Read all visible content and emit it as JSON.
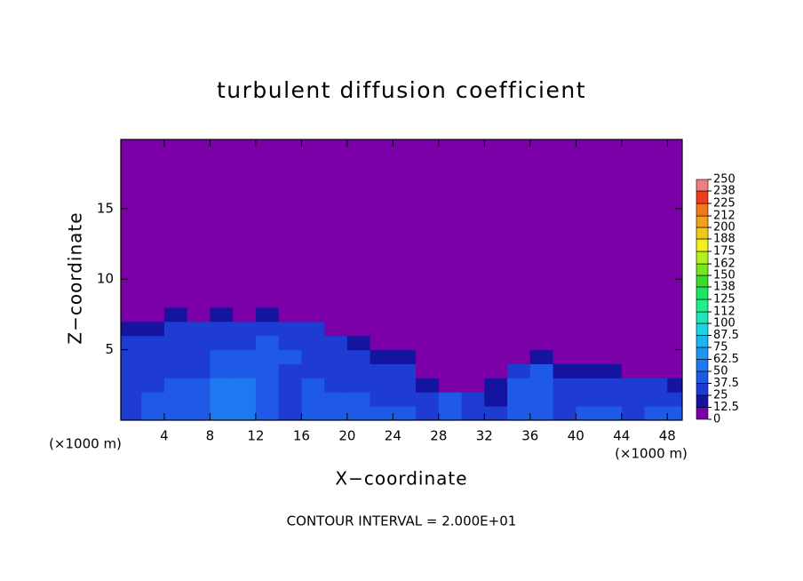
{
  "chart_data": {
    "type": "heatmap",
    "title": "turbulent diffusion coefficient",
    "x_label": "X−coordinate",
    "y_label": "Z−coordinate",
    "x_unit_label": "(×1000 m)",
    "y_unit_label": "(×1000 m)",
    "footnote": "CONTOUR INTERVAL = 2.000E+01",
    "xlim": [
      0.2,
      49.3
    ],
    "ylim": [
      0,
      19.9
    ],
    "xticks": [
      4,
      8,
      12,
      16,
      20,
      24,
      28,
      32,
      36,
      40,
      44,
      48
    ],
    "yticks": [
      5,
      10,
      15
    ],
    "x_edges": [
      0,
      2,
      4,
      6,
      8,
      10,
      12,
      14,
      16,
      18,
      20,
      22,
      24,
      26,
      28,
      30,
      32,
      34,
      36,
      38,
      40,
      42,
      44,
      46,
      48,
      50
    ],
    "z_edges": [
      0,
      1,
      2,
      3,
      4,
      5,
      6,
      7,
      8,
      20
    ],
    "values": [
      [
        37,
        40,
        45,
        40,
        50,
        55,
        40,
        35,
        45,
        40,
        38,
        45,
        40,
        35,
        40,
        30,
        25,
        38,
        40,
        35,
        45,
        40,
        35,
        38,
        40
      ],
      [
        35,
        38,
        45,
        38,
        55,
        60,
        40,
        35,
        45,
        40,
        38,
        35,
        30,
        25,
        40,
        25,
        20,
        45,
        40,
        30,
        35,
        30,
        30,
        35,
        30
      ],
      [
        35,
        35,
        40,
        38,
        50,
        55,
        40,
        35,
        40,
        35,
        35,
        30,
        28,
        20,
        10,
        5,
        15,
        45,
        45,
        30,
        30,
        25,
        30,
        25,
        15
      ],
      [
        30,
        30,
        35,
        35,
        45,
        45,
        40,
        35,
        35,
        35,
        30,
        28,
        25,
        10,
        3,
        2,
        5,
        35,
        40,
        20,
        20,
        15,
        10,
        8,
        5
      ],
      [
        30,
        28,
        30,
        30,
        40,
        40,
        45,
        38,
        30,
        30,
        28,
        20,
        15,
        3,
        0,
        0,
        0,
        10,
        15,
        5,
        3,
        5,
        3,
        2,
        2
      ],
      [
        28,
        25,
        30,
        28,
        35,
        35,
        40,
        35,
        30,
        28,
        20,
        8,
        3,
        0,
        0,
        0,
        0,
        0,
        0,
        0,
        0,
        0,
        0,
        0,
        0
      ],
      [
        20,
        20,
        28,
        25,
        30,
        30,
        35,
        30,
        25,
        10,
        3,
        0,
        0,
        0,
        0,
        0,
        0,
        0,
        0,
        0,
        0,
        0,
        0,
        0,
        0
      ],
      [
        5,
        8,
        15,
        10,
        15,
        10,
        20,
        12,
        5,
        0,
        0,
        0,
        0,
        0,
        0,
        0,
        0,
        0,
        0,
        0,
        0,
        0,
        0,
        0,
        0
      ],
      [
        0,
        0,
        0,
        0,
        0,
        0,
        0,
        0,
        0,
        0,
        0,
        0,
        0,
        0,
        0,
        0,
        0,
        0,
        0,
        0,
        0,
        0,
        0,
        0,
        0
      ]
    ],
    "colorbar_levels": [
      0,
      {
        "value": 12.5,
        "label": "12.5"
      },
      25,
      {
        "value": 37.5,
        "label": "37.5"
      },
      50,
      {
        "value": 62.5,
        "label": "62.5"
      },
      75,
      {
        "value": 87.5,
        "label": "87.5"
      },
      100,
      112,
      125,
      138,
      150,
      162,
      175,
      188,
      200,
      212,
      225,
      238,
      250
    ],
    "colors": [
      "#7b00a8",
      "#1414a0",
      "#1e3cd2",
      "#1e5ae6",
      "#1e78f0",
      "#1e96f0",
      "#1eb4f0",
      "#1ed2e6",
      "#1ee6b4",
      "#1ef08c",
      "#1ee664",
      "#3cdc28",
      "#78e61e",
      "#b4f01e",
      "#f0f01e",
      "#f0c81e",
      "#f0a01e",
      "#f0781e",
      "#f03c1e",
      "#f08080"
    ]
  }
}
